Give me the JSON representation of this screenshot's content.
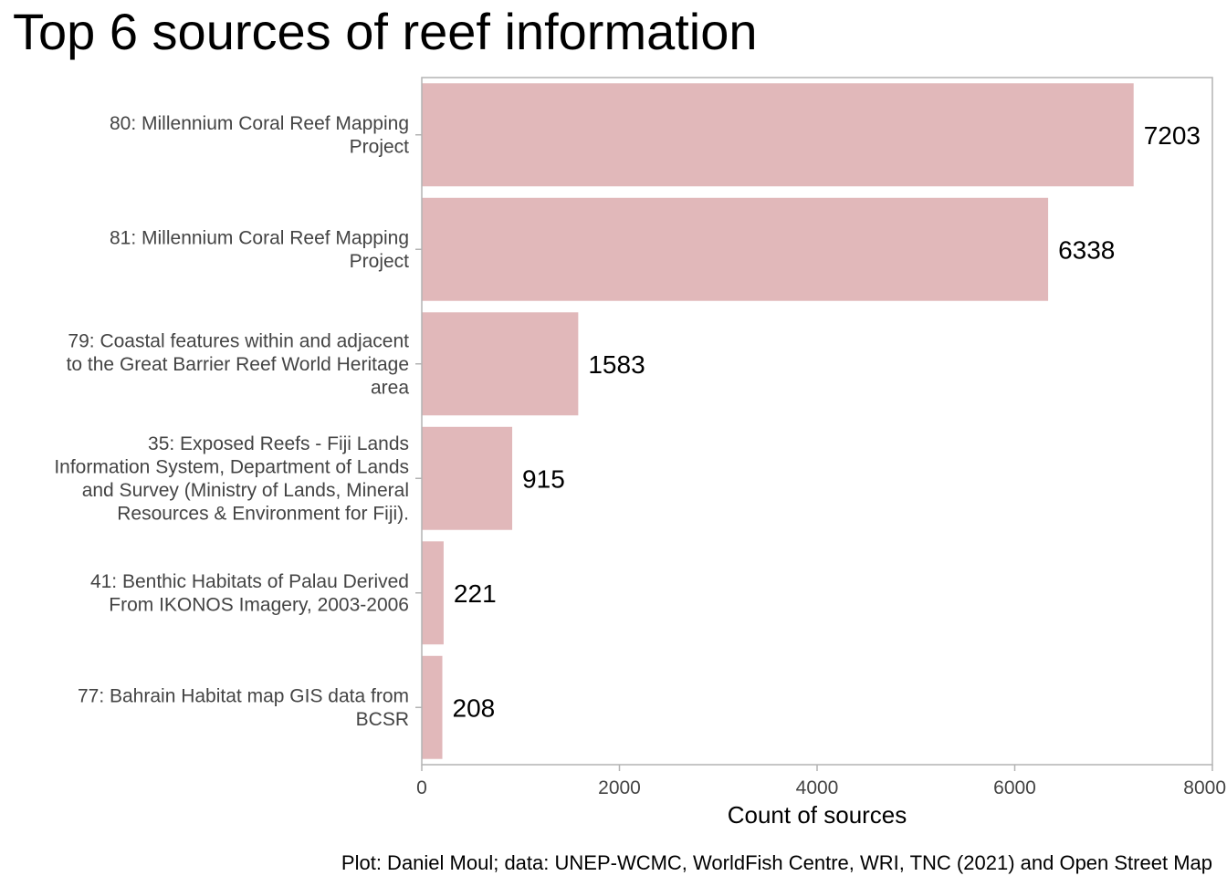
{
  "chart_data": {
    "type": "bar",
    "orientation": "horizontal",
    "title": "Top 6 sources of reef information",
    "xlabel": "Count of sources",
    "ylabel": "",
    "caption": "Plot: Daniel Moul; data: UNEP-WCMC, WorldFish Centre, WRI, TNC (2021) and Open Street Map",
    "categories": [
      "80: Millennium Coral Reef Mapping Project",
      "81: Millennium Coral Reef Mapping Project",
      "79: Coastal features within and adjacent to the Great Barrier Reef World Heritage area",
      "35: Exposed Reefs - Fiji Lands Information System, Department of Lands and Survey (Ministry of Lands, Mineral Resources & Environment for Fiji).",
      "41: Benthic Habitats of Palau Derived From IKONOS Imagery, 2003-2006",
      "77: Bahrain Habitat map GIS data from BCSR"
    ],
    "category_lines": [
      [
        "80: Millennium Coral Reef Mapping",
        "Project"
      ],
      [
        "81: Millennium Coral Reef Mapping",
        "Project"
      ],
      [
        "79: Coastal features within and adjacent",
        "to the Great Barrier Reef World Heritage",
        "area"
      ],
      [
        "35: Exposed Reefs - Fiji Lands",
        "Information System, Department of Lands",
        "and Survey (Ministry of Lands, Mineral",
        "Resources & Environment for Fiji)."
      ],
      [
        "41: Benthic Habitats of Palau Derived",
        "From IKONOS Imagery, 2003-2006"
      ],
      [
        "77: Bahrain Habitat map GIS data from",
        "BCSR"
      ]
    ],
    "values": [
      7203,
      6338,
      1583,
      915,
      221,
      208
    ],
    "xlim": [
      0,
      8000
    ],
    "xticks": [
      0,
      2000,
      4000,
      6000,
      8000
    ],
    "bar_color": "#e1b8ba",
    "grid": false,
    "legend": "none"
  }
}
